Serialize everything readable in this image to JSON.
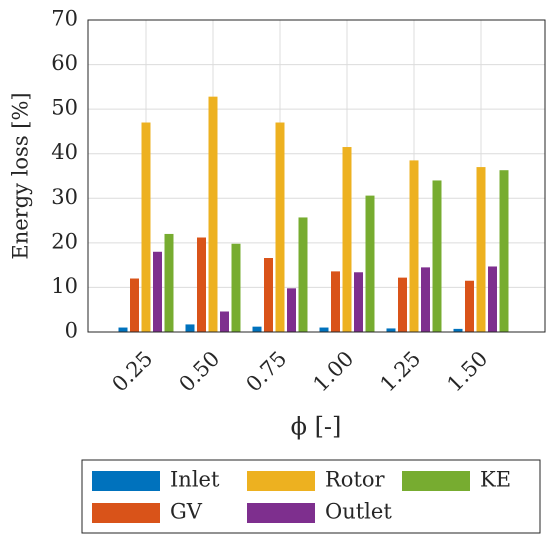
{
  "chart_data": {
    "type": "bar",
    "categories": [
      "0.25",
      "0.50",
      "0.75",
      "1.00",
      "1.25",
      "1.50"
    ],
    "xlabel": "ϕ [-]",
    "ylabel": "Energy loss [%]",
    "series": [
      {
        "name": "Inlet",
        "color": "#0072bd",
        "values": [
          1,
          1.7,
          1.2,
          1,
          0.8,
          0.7
        ]
      },
      {
        "name": "GV",
        "color": "#d95319",
        "values": [
          12,
          21.2,
          16.6,
          13.6,
          12.2,
          11.5
        ]
      },
      {
        "name": "Rotor",
        "color": "#edb120",
        "values": [
          47,
          52.8,
          47,
          41.5,
          38.5,
          37
        ]
      },
      {
        "name": "Outlet",
        "color": "#7e2f8e",
        "values": [
          18,
          4.6,
          9.8,
          13.4,
          14.5,
          14.7
        ]
      },
      {
        "name": "KE",
        "color": "#77ac30",
        "values": [
          22,
          19.8,
          25.7,
          30.6,
          34,
          36.3
        ]
      }
    ],
    "ylim": [
      0,
      70
    ],
    "yticks": [
      0,
      10,
      20,
      30,
      40,
      50,
      60,
      70
    ],
    "grid": true
  }
}
